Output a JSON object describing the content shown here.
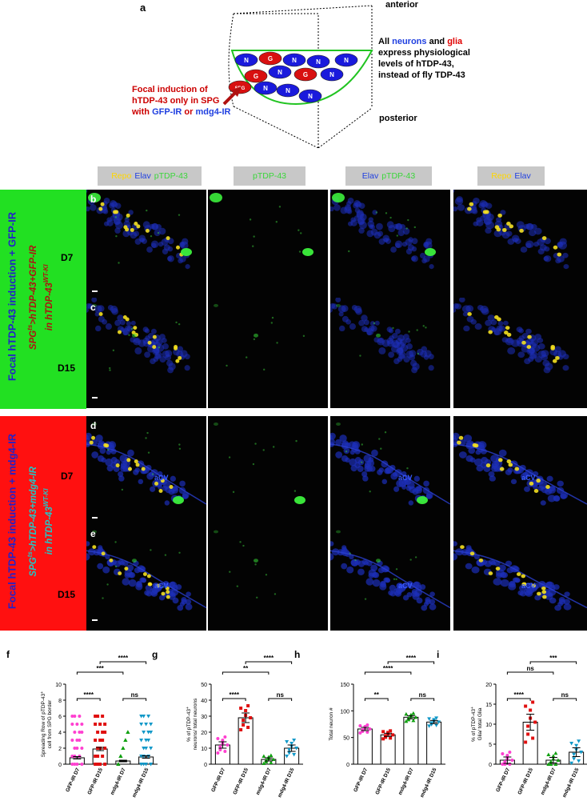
{
  "panel_a": {
    "letter": "a",
    "anterior": "anterior",
    "posterior": "posterior",
    "cells": [
      {
        "label": "N",
        "type": "neuron"
      },
      {
        "label": "G",
        "type": "glia"
      },
      {
        "label": "N",
        "type": "neuron"
      },
      {
        "label": "N",
        "type": "neuron"
      },
      {
        "label": "N",
        "type": "neuron"
      },
      {
        "label": "G",
        "type": "glia"
      },
      {
        "label": "N",
        "type": "neuron"
      },
      {
        "label": "G",
        "type": "glia"
      },
      {
        "label": "N",
        "type": "neuron"
      },
      {
        "label": "N",
        "type": "neuron"
      },
      {
        "label": "SPG",
        "type": "glia"
      },
      {
        "label": "N",
        "type": "neuron"
      },
      {
        "label": "N",
        "type": "neuron"
      }
    ],
    "right_text": {
      "all": "All ",
      "neurons": "neurons",
      "and": " and ",
      "glia": "glia",
      "line2": "express physiological",
      "line3": "levels of hTDP-43,",
      "line4": "instead of fly TDP-43"
    },
    "left_text": {
      "line1": "Focal induction of",
      "line2": "hTDP-43 only in SPG",
      "with": "with ",
      "gfp": "GFP-IR",
      "or": " or ",
      "mdg4": "mdg4-IR"
    },
    "colors": {
      "neuron": "#1a1adc",
      "glia": "#d81010",
      "outline": "#22c422",
      "arrow": "#b01010"
    }
  },
  "column_headers": [
    {
      "parts": [
        {
          "text": "Repo",
          "color": "yellow"
        },
        {
          "text": "Elav",
          "color": "blue"
        },
        {
          "text": "pTDP-43",
          "color": "green"
        }
      ]
    },
    {
      "parts": [
        {
          "text": "pTDP-43",
          "color": "green"
        }
      ]
    },
    {
      "parts": [
        {
          "text": "Elav",
          "color": "blue"
        },
        {
          "text": "pTDP-43",
          "color": "green"
        }
      ]
    },
    {
      "parts": [
        {
          "text": "Repo",
          "color": "yellow"
        },
        {
          "text": "Elav",
          "color": "blue"
        }
      ]
    }
  ],
  "group_gfp": {
    "title": "Focal hTDP-43 induction + GFP-IR",
    "genotype_pre": "SPG",
    "genotype_sup1": "ts",
    "genotype_mid": ">hTDP-43+GFP-IR",
    "genotype_line2": "in hTDP-43",
    "genotype_sup2": "WT-KI",
    "bg": "#22e022",
    "days": [
      "D7",
      "D15"
    ]
  },
  "group_mdg4": {
    "title": "Focal hTDP-43 induction + mdg4-IR",
    "genotype_pre": "SPG",
    "genotype_sup1": "ts",
    "genotype_mid": ">hTDP-43+mdg4-IR",
    "genotype_line2": "in hTDP-43",
    "genotype_sup2": "WT-KI",
    "bg": "#ff1010",
    "days": [
      "D7",
      "D15"
    ]
  },
  "micro_rows": [
    {
      "letter": "b"
    },
    {
      "letter": "c"
    },
    {
      "letter": "d",
      "annot": "aCV"
    },
    {
      "letter": "e",
      "annot": "aCV"
    }
  ],
  "graphs": [
    {
      "letter": "f",
      "ylabel_l1": "Spreading Row of pTDP-43",
      "ylabel_sup": "+",
      "ylabel_l2": "cell from SPG border",
      "ylim": [
        0,
        10
      ],
      "yticks": [
        "0",
        "2",
        "4",
        "6",
        "8",
        "10"
      ],
      "categories": [
        "GFP-IR D7",
        "GFP-IR D15",
        "mdg4-IR D7",
        "mdg4-IR D15"
      ],
      "means": [
        0.8,
        1.9,
        0.4,
        0.9
      ],
      "sem": [
        0.15,
        0.2,
        0.1,
        0.15
      ],
      "brackets": [
        {
          "from": 0,
          "to": 1,
          "label": "****",
          "level": 1
        },
        {
          "from": 0,
          "to": 2,
          "label": "***",
          "level": 2
        },
        {
          "from": 1,
          "to": 3,
          "label": "****",
          "level": 3
        },
        {
          "from": 2,
          "to": 3,
          "label": "ns",
          "level": 1
        }
      ]
    },
    {
      "letter": "g",
      "ylabel_l1": "% of pTDP-43",
      "ylabel_sup": "+",
      "ylabel_l2": "neurons/ total neurons",
      "ylim": [
        0,
        50
      ],
      "yticks": [
        "0",
        "10",
        "20",
        "30",
        "40",
        "50"
      ],
      "categories": [
        "GFP-IR D7",
        "GFP-IR D15",
        "mdg4-IR D7",
        "mdg4-IR D15"
      ],
      "means": [
        12,
        29,
        3,
        10
      ],
      "sem": [
        2,
        3,
        1,
        2
      ],
      "brackets": [
        {
          "from": 0,
          "to": 1,
          "label": "****",
          "level": 1
        },
        {
          "from": 0,
          "to": 2,
          "label": "**",
          "level": 2
        },
        {
          "from": 1,
          "to": 3,
          "label": "****",
          "level": 3
        },
        {
          "from": 2,
          "to": 3,
          "label": "ns",
          "level": 1
        }
      ]
    },
    {
      "letter": "h",
      "ylabel_l1": "Total neuron #",
      "ylabel_sup": "",
      "ylabel_l2": "",
      "ylim": [
        0,
        150
      ],
      "yticks": [
        "0",
        "50",
        "100",
        "150"
      ],
      "categories": [
        "GFP-IR D7",
        "GFP-IR D15",
        "mdg4-IR D7",
        "mdg4-IR D15"
      ],
      "means": [
        66,
        55,
        88,
        79
      ],
      "sem": [
        3,
        3,
        3,
        3
      ],
      "brackets": [
        {
          "from": 0,
          "to": 1,
          "label": "**",
          "level": 1
        },
        {
          "from": 0,
          "to": 2,
          "label": "****",
          "level": 2
        },
        {
          "from": 1,
          "to": 3,
          "label": "****",
          "level": 3
        },
        {
          "from": 2,
          "to": 3,
          "label": "ns",
          "level": 1
        }
      ]
    },
    {
      "letter": "i",
      "ylabel_l1": "% of pTDP-43",
      "ylabel_sup": "+",
      "ylabel_l2": "Glia/ total Glia",
      "ylim": [
        0,
        20
      ],
      "yticks": [
        "0",
        "5",
        "10",
        "15",
        "20"
      ],
      "categories": [
        "GFP-IR D7",
        "GFP-IR D15",
        "mdg4-IR D7",
        "mdg4-IR D15"
      ],
      "means": [
        1,
        10.5,
        1,
        3
      ],
      "sem": [
        0.8,
        2,
        0.7,
        1.1
      ],
      "brackets": [
        {
          "from": 0,
          "to": 1,
          "label": "****",
          "level": 1
        },
        {
          "from": 0,
          "to": 2,
          "label": "ns",
          "level": 2
        },
        {
          "from": 1,
          "to": 3,
          "label": "***",
          "level": 3
        },
        {
          "from": 2,
          "to": 3,
          "label": "ns",
          "level": 1
        }
      ]
    }
  ],
  "chart_data": [
    {
      "type": "bar",
      "categories": [
        "GFP-IR D7",
        "GFP-IR D15",
        "mdg4-IR D7",
        "mdg4-IR D15"
      ],
      "values": [
        0.8,
        1.9,
        0.4,
        0.9
      ],
      "ylim": [
        0,
        10
      ]
    },
    {
      "type": "bar",
      "categories": [
        "GFP-IR D7",
        "GFP-IR D15",
        "mdg4-IR D7",
        "mdg4-IR D15"
      ],
      "values": [
        12,
        29,
        3,
        10
      ],
      "ylim": [
        0,
        50
      ]
    },
    {
      "type": "bar",
      "categories": [
        "GFP-IR D7",
        "GFP-IR D15",
        "mdg4-IR D7",
        "mdg4-IR D15"
      ],
      "values": [
        66,
        55,
        88,
        79
      ],
      "ylim": [
        0,
        150
      ]
    },
    {
      "type": "bar",
      "categories": [
        "GFP-IR D7",
        "GFP-IR D15",
        "mdg4-IR D7",
        "mdg4-IR D15"
      ],
      "values": [
        1,
        10.5,
        1,
        3
      ],
      "ylim": [
        0,
        20
      ]
    }
  ],
  "series_colors": [
    "#ff40d0",
    "#e01010",
    "#10a010",
    "#1098c8"
  ]
}
